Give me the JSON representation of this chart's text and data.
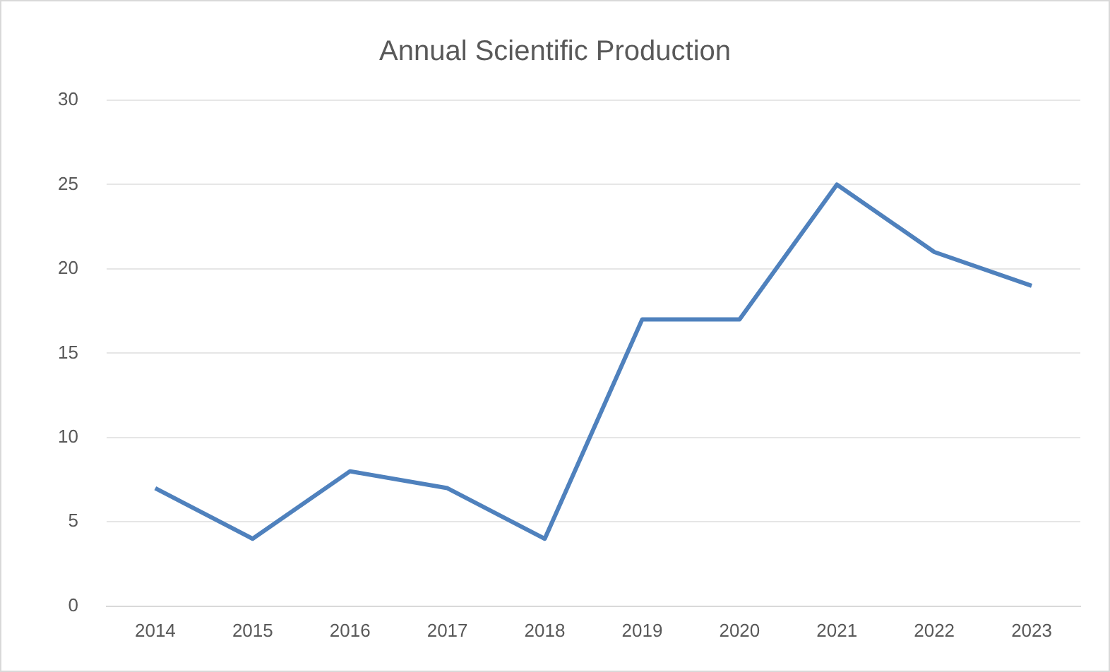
{
  "chart_data": {
    "type": "line",
    "title": "Annual Scientific Production",
    "categories": [
      "2014",
      "2015",
      "2016",
      "2017",
      "2018",
      "2019",
      "2020",
      "2021",
      "2022",
      "2023"
    ],
    "series": [
      {
        "color": "#4f81bd",
        "values": [
          7,
          4,
          8,
          7,
          4,
          17,
          17,
          25,
          21,
          19
        ]
      }
    ],
    "ylim": [
      0,
      30
    ],
    "yticks": [
      0,
      5,
      10,
      15,
      20,
      25,
      30
    ],
    "grid": "y",
    "legend": false,
    "marker": "none",
    "line_style": "solid"
  }
}
